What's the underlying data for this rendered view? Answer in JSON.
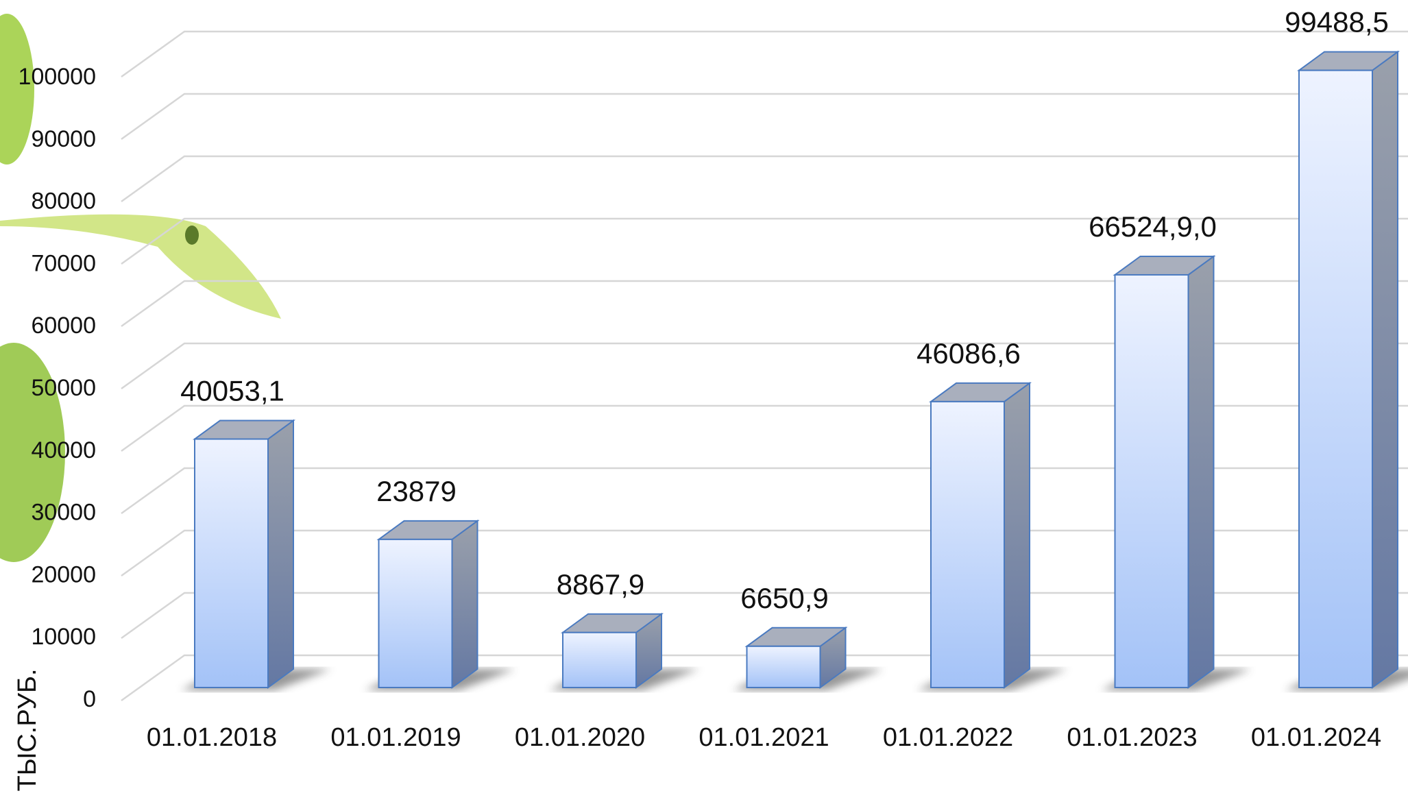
{
  "chart_data": {
    "type": "bar3d",
    "y_axis_label": "ТЫС.РУБ.",
    "categories": [
      "01.01.2018",
      "01.01.2019",
      "01.01.2020",
      "01.01.2021",
      "01.01.2022",
      "01.01.2023",
      "01.01.2024"
    ],
    "values": [
      40053.1,
      23879,
      8867.9,
      6650.9,
      46086.6,
      66524.9,
      99488.5
    ],
    "value_labels": [
      "40053,1",
      "23879",
      "8867,9",
      "6650,9",
      "46086,6",
      "66524,9,0",
      "99488,5"
    ],
    "ylim": [
      0,
      100000
    ],
    "yticks": [
      0,
      10000,
      20000,
      30000,
      40000,
      50000,
      60000,
      70000,
      80000,
      90000,
      100000
    ],
    "grid": true
  }
}
